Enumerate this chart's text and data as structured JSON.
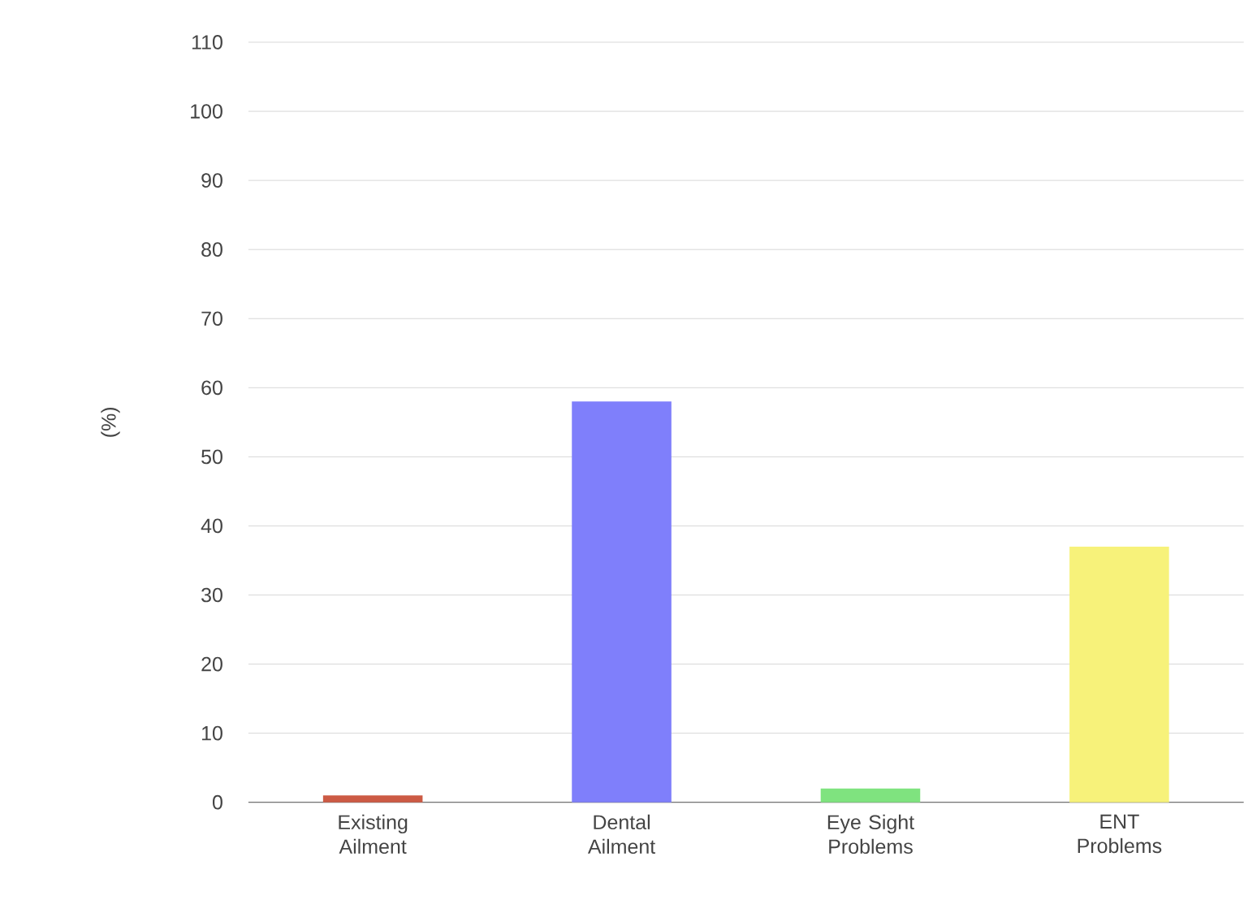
{
  "chart_data": {
    "type": "bar",
    "ylabel": "(%)",
    "categories": [
      "Existing Ailment",
      "Dental Ailment",
      "Eye Sight Problems",
      "ENT Problems"
    ],
    "values": [
      1,
      58,
      2,
      37
    ],
    "colors": [
      "#cc5a44",
      "#7f7ffb",
      "#7fe37f",
      "#f7f27a"
    ],
    "ylim": [
      0,
      110
    ],
    "yticks": [
      0,
      10,
      20,
      30,
      40,
      50,
      60,
      70,
      80,
      90,
      100,
      110
    ],
    "grid": "y"
  }
}
